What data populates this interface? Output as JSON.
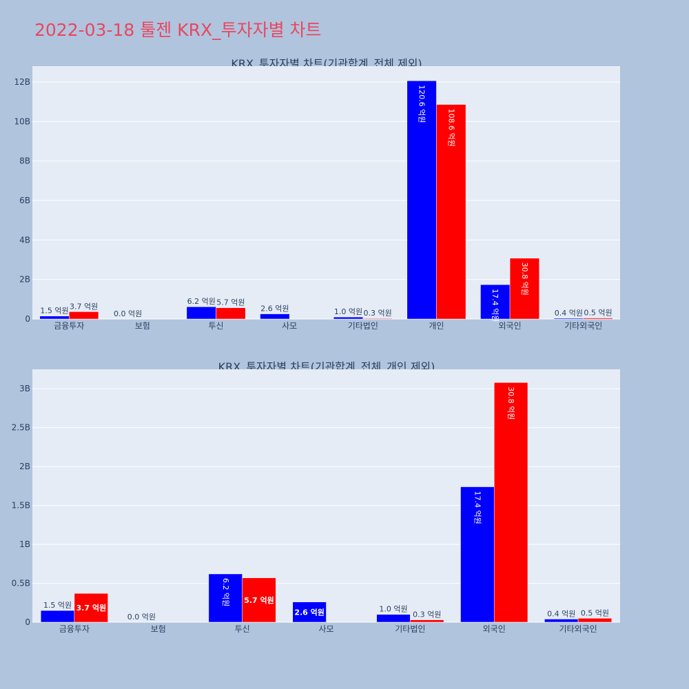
{
  "page": {
    "title": "2022-03-18 툴젠 KRX_투자자별 차트"
  },
  "colors": {
    "buy": "#0000ff",
    "sell": "#ff0000",
    "plot_bg": "#e5ecf6",
    "paper_bg": "#b0c4de",
    "axis_text": "#2a3f5f",
    "title_text": "#e8475f"
  },
  "chart_data": [
    {
      "type": "bar",
      "title": "KRX_투자자별 차트(기관합계_전체 제외)",
      "categories": [
        "금융투자",
        "보험",
        "투신",
        "사모",
        "기타법인",
        "개인",
        "외국인",
        "기타외국인"
      ],
      "series": [
        {
          "color": "#0000ff",
          "values": [
            150000000.0,
            0.0,
            620000000.0,
            260000000.0,
            100000000.0,
            12060000000.0,
            1740000000.0,
            40000000.0
          ],
          "labels": [
            "1.5 억원",
            "0.0 억원",
            "6.2 억원",
            "2.6 억원",
            "1.0 억원",
            "120.6 억원",
            "17.4 억원",
            "0.4 억원"
          ]
        },
        {
          "color": "#ff0000",
          "values": [
            370000000.0,
            null,
            570000000.0,
            null,
            30000000.0,
            10860000000.0,
            3080000000.0,
            50000000.0
          ],
          "labels": [
            "3.7 억원",
            "",
            "5.7 억원",
            "",
            "0.3 억원",
            "108.6 억원",
            "30.8 억원",
            "0.5 억원"
          ]
        }
      ],
      "ylim": [
        0,
        12800000000.0
      ],
      "yticks": [
        0,
        2000000000.0,
        4000000000.0,
        6000000000.0,
        8000000000.0,
        10000000000.0,
        12000000000.0
      ],
      "yticklabels": [
        "0",
        "2B",
        "4B",
        "6B",
        "8B",
        "10B",
        "12B"
      ],
      "grid": true
    },
    {
      "type": "bar",
      "title": "KRX_투자자별 차트(기관합계_전체_개인 제외)",
      "categories": [
        "금융투자",
        "보험",
        "투신",
        "사모",
        "기타법인",
        "외국인",
        "기타외국인"
      ],
      "series": [
        {
          "color": "#0000ff",
          "values": [
            150000000.0,
            0.0,
            620000000.0,
            260000000.0,
            100000000.0,
            1740000000.0,
            40000000.0
          ],
          "labels": [
            "1.5 억원",
            "0.0 억원",
            "6.2 억원",
            "2.6 억원",
            "1.0 억원",
            "17.4 억원",
            "0.4 억원"
          ]
        },
        {
          "color": "#ff0000",
          "values": [
            370000000.0,
            null,
            570000000.0,
            null,
            30000000.0,
            3080000000.0,
            50000000.0
          ],
          "labels": [
            "3.7 억원",
            "",
            "5.7 억원",
            "",
            "0.3 억원",
            "30.8 억원",
            "0.5 억원"
          ]
        }
      ],
      "ylim": [
        0,
        3250000000.0
      ],
      "yticks": [
        0,
        500000000.0,
        1000000000.0,
        1500000000.0,
        2000000000.0,
        2500000000.0,
        3000000000.0
      ],
      "yticklabels": [
        "0",
        "0.5B",
        "1B",
        "1.5B",
        "2B",
        "2.5B",
        "3B"
      ],
      "grid": true
    }
  ]
}
